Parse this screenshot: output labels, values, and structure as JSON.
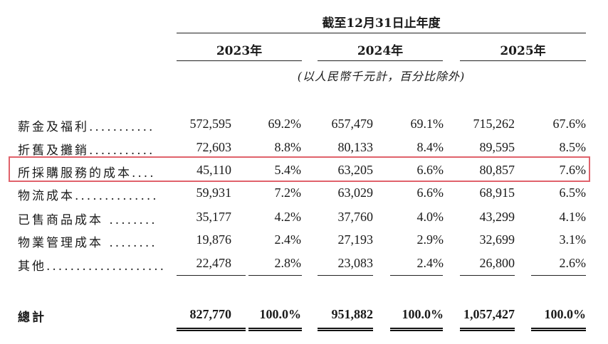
{
  "header": {
    "period": "截至12月31日止年度",
    "years": [
      "2023年",
      "2024年",
      "2025年"
    ],
    "unit_note": "(以人民幣千元計，百分比除外)"
  },
  "rows": [
    {
      "label": "薪金及福利...........",
      "v2023": "572,595",
      "p2023": "69.2%",
      "v2024": "657,479",
      "p2024": "69.1%",
      "v2025": "715,262",
      "p2025": "67.6%"
    },
    {
      "label": "折舊及攤銷...........",
      "v2023": "72,603",
      "p2023": "8.8%",
      "v2024": "80,133",
      "p2024": "8.4%",
      "v2025": "89,595",
      "p2025": "8.5%"
    },
    {
      "label": "所採購服務的成本....",
      "v2023": "45,110",
      "p2023": "5.4%",
      "v2024": "63,205",
      "p2024": "6.6%",
      "v2025": "80,857",
      "p2025": "7.6%"
    },
    {
      "label": "物流成本..............",
      "v2023": "59,931",
      "p2023": "7.2%",
      "v2024": "63,029",
      "p2024": "6.6%",
      "v2025": "68,915",
      "p2025": "6.5%"
    },
    {
      "label": "已售商品成本 ........",
      "v2023": "35,177",
      "p2023": "4.2%",
      "v2024": "37,760",
      "p2024": "4.0%",
      "v2025": "43,299",
      "p2025": "4.1%"
    },
    {
      "label": "物業管理成本 ........",
      "v2023": "19,876",
      "p2023": "2.4%",
      "v2024": "27,193",
      "p2024": "2.9%",
      "v2025": "32,699",
      "p2025": "3.1%"
    },
    {
      "label": "其他....................",
      "v2023": "22,478",
      "p2023": "2.8%",
      "v2024": "23,083",
      "p2024": "2.4%",
      "v2025": "26,800",
      "p2025": "2.6%"
    }
  ],
  "total": {
    "label": "總計",
    "v2023": "827,770",
    "p2023": "100.0%",
    "v2024": "951,882",
    "p2024": "100.0%",
    "v2025": "1,057,427",
    "p2025": "100.0%"
  },
  "highlight_color": "#e0626b"
}
